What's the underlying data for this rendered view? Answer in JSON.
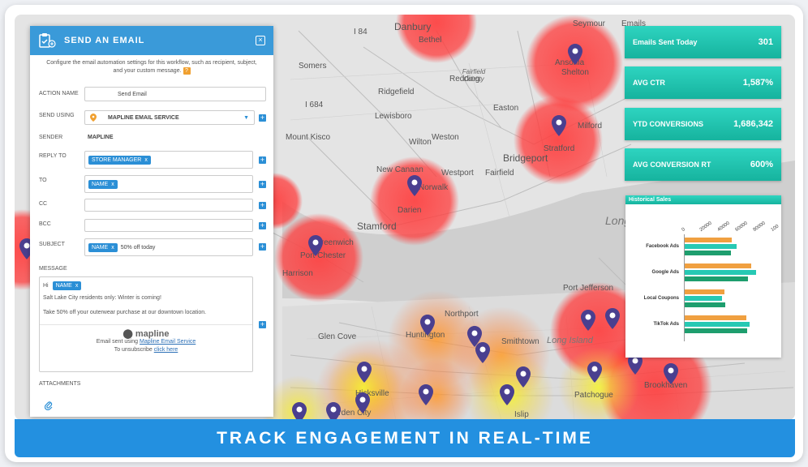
{
  "panel": {
    "title": "SEND AN EMAIL",
    "description": "Configure the email automation settings for this workflow, such as recipient, subject, and your custom message.",
    "help": "?",
    "close": "×",
    "action_name_label": "ACTION NAME",
    "action_name_value": "Send Email",
    "send_using_label": "SEND USING",
    "send_using_value": "MAPLINE EMAIL SERVICE",
    "sender_label": "SENDER",
    "sender_value": "MAPLINE",
    "reply_to_label": "REPLY TO",
    "reply_to_chip": "STORE MANAGER",
    "to_label": "TO",
    "to_chip": "NAME",
    "cc_label": "CC",
    "bcc_label": "BCC",
    "subject_label": "SUBJECT",
    "subject_chip": "NAME",
    "subject_text": "50% off today",
    "message_label": "MESSAGE",
    "message_hi": "Hi",
    "message_chip": "NAME",
    "message_line1": "Salt Lake City residents only: Winter is coming!",
    "message_line2": "Take 50% off your outerwear purchase at our downtown location.",
    "brand": "mapline",
    "footer_sent": "Email sent using",
    "footer_link": "Mapline Email Service",
    "footer_unsub": "To unsubscribe",
    "footer_click": "click here",
    "attachments_label": "ATTACHMENTS",
    "plus": "+",
    "chip_x": "x"
  },
  "stats": [
    {
      "label": "Emails Sent Today",
      "value": "301"
    },
    {
      "label": "AVG CTR",
      "value": "1,587%"
    },
    {
      "label": "YTD CONVERSIONS",
      "value": "1,686,342"
    },
    {
      "label": "AVG CONVERSION RT",
      "value": "600%"
    }
  ],
  "chart_data": {
    "type": "bar",
    "title": "Historical Sales",
    "categories": [
      "Facebook Ads",
      "Google Ads",
      "Local Coupons",
      "TikTok Ads"
    ],
    "ticks": [
      "0",
      "20000",
      "40000",
      "60000",
      "80000",
      "100"
    ],
    "xlim": [
      0,
      100000
    ],
    "series": [
      {
        "color": "#f0a040",
        "values": [
          54000,
          75000,
          45000,
          70000
        ]
      },
      {
        "color": "#27c9b4",
        "values": [
          59000,
          81000,
          43000,
          74000
        ]
      },
      {
        "color": "#1e9e6e",
        "values": [
          53000,
          72000,
          46000,
          71000
        ]
      }
    ]
  },
  "map": {
    "places": [
      "Danbury",
      "Bethel",
      "Seymour",
      "I 84",
      "Emails",
      "Ansonia",
      "Shelton",
      "Somers",
      "Ridgefield",
      "Redding",
      "Fairfield County",
      "Easton",
      "I 684",
      "Lewisboro",
      "Mount Kisco",
      "Wilton",
      "Weston",
      "Milford",
      "Bridgeport",
      "Stratford",
      "New Canaan",
      "Westport",
      "Fairfield",
      "Norwalk",
      "Darien",
      "Stamford",
      "Long",
      "Greenwich",
      "Port Chester",
      "Harrison",
      "Port Jefferson",
      "Northport",
      "Huntington",
      "Glen Cove",
      "Smithtown",
      "Long Island",
      "Hicksville",
      "Patchogue",
      "Brookhaven",
      "Islip",
      "Garden City"
    ]
  },
  "banner": "TRACK ENGAGEMENT IN REAL-TIME"
}
